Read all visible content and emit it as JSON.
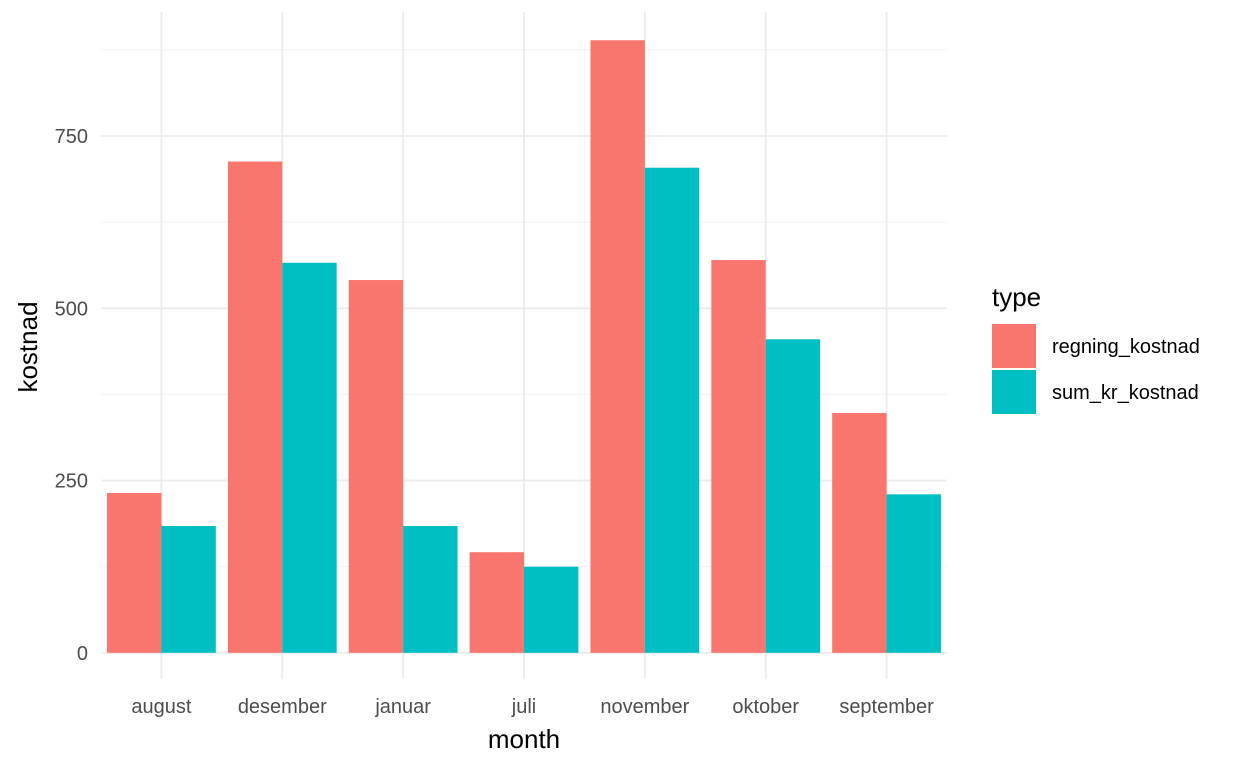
{
  "chart_data": {
    "type": "bar",
    "xlabel": "month",
    "ylabel": "kostnad",
    "categories": [
      "august",
      "desember",
      "januar",
      "juli",
      "november",
      "oktober",
      "september"
    ],
    "series": [
      {
        "name": "regning_kostnad",
        "color": "#F8766D",
        "values": [
          232,
          713,
          541,
          146,
          889,
          570,
          348
        ]
      },
      {
        "name": "sum_kr_kostnad",
        "color": "#00BFC4",
        "values": [
          184,
          566,
          184,
          125,
          704,
          455,
          230
        ]
      }
    ],
    "yticks": [
      "0",
      "250",
      "500",
      "750"
    ],
    "ylim": [
      -38,
      930
    ],
    "grid": true,
    "legend": {
      "title": "type",
      "position": "right"
    }
  }
}
